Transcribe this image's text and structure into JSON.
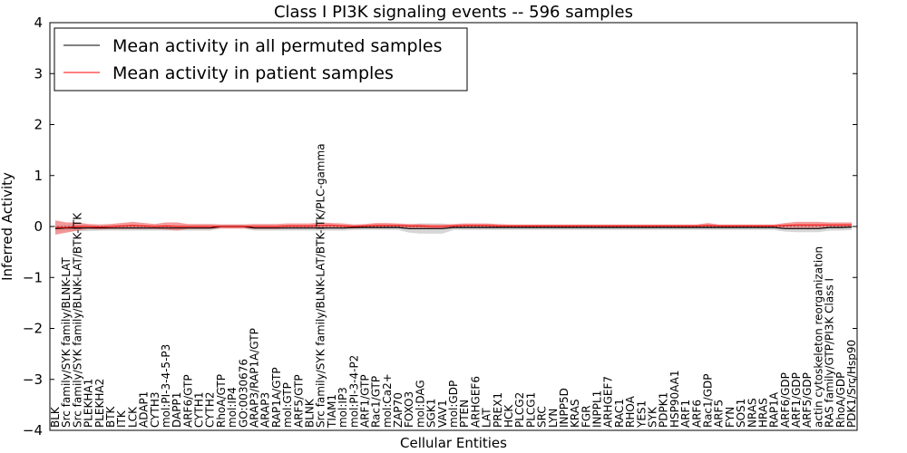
{
  "chart_data": {
    "type": "line",
    "title": "Class I PI3K signaling events -- 596 samples",
    "xlabel": "Cellular Entities",
    "ylabel": "Inferred Activity",
    "ylim": [
      -4,
      4
    ],
    "yticks": [
      "4",
      "3",
      "2",
      "1",
      "0",
      "−1",
      "−2",
      "−3",
      "−4"
    ],
    "yticks_values": [
      4,
      3,
      2,
      1,
      0,
      -1,
      -2,
      -3,
      -4
    ],
    "grid": false,
    "legend_position": "top-left",
    "categories": [
      "BLK",
      "Src family/SYK family/BLNK-LAT",
      "Src family/SYK family/BLNK-LAT/BTK-ITK",
      "PLEKHA1",
      "PLEKHA2",
      "BTK",
      "ITK",
      "LCK",
      "ADAP1",
      "CYTH3",
      "mol:PI-3-4-5-P3",
      "DAPP1",
      "ARF6/GTP",
      "CYTH1",
      "CYTH2",
      "RhoA/GTP",
      "mol:IP4",
      "GO:0030676",
      "ARAP3/RAP1A/GTP",
      "ARAP3",
      "RAP1A/GTP",
      "mol:GTP",
      "ARF5/GTP",
      "BLNK",
      "Src family/SYK family/BLNK-LAT/BTK-ITK/PLC-gamma",
      "TIAM1",
      "mol:IP3",
      "mol:PI-3-4-P2",
      "ARF1/GTP",
      "Rac1/GTP",
      "mol:Ca2+",
      "ZAP70",
      "FOXO3",
      "mol:DAG",
      "SGK1",
      "VAV1",
      "mol:GDP",
      "PTEN",
      "ARHGEF6",
      "LAT",
      "PREX1",
      "HCK",
      "PLCG2",
      "PLCG1",
      "SRC",
      "LYN",
      "INPP5D",
      "KRAS",
      "FGR",
      "INPPL1",
      "ARHGEF7",
      "RAC1",
      "RHOA",
      "YES1",
      "SYK",
      "PDPK1",
      "HSP90AA1",
      "ARF1",
      "ARF6",
      "Rac1/GDP",
      "ARF5",
      "FYN",
      "SOS1",
      "NRAS",
      "HRAS",
      "RAP1A",
      "ARF6/GDP",
      "ARF1/GDP",
      "ARF5/GDP",
      "actin cytoskeleton reorganization",
      "RAS family/GTP/PI3K Class I",
      "RhoA/GDP",
      "PDK1/Src/Hsp90"
    ],
    "series": [
      {
        "name": "Mean activity in all permuted samples",
        "color": "#000000",
        "band_color": "#c8c8c8",
        "values": [
          -0.04,
          -0.03,
          -0.03,
          -0.03,
          -0.03,
          -0.03,
          -0.03,
          -0.03,
          -0.03,
          -0.03,
          -0.03,
          -0.03,
          -0.03,
          -0.03,
          -0.03,
          0.0,
          0.0,
          0.0,
          -0.03,
          -0.03,
          -0.03,
          -0.03,
          -0.03,
          -0.03,
          -0.03,
          -0.03,
          -0.03,
          -0.02,
          -0.02,
          -0.02,
          -0.02,
          -0.02,
          -0.04,
          -0.04,
          -0.04,
          -0.04,
          -0.02,
          -0.02,
          -0.02,
          -0.02,
          -0.02,
          -0.02,
          -0.02,
          -0.02,
          -0.02,
          -0.02,
          -0.02,
          -0.02,
          -0.02,
          -0.02,
          -0.02,
          -0.02,
          -0.02,
          -0.02,
          -0.02,
          -0.02,
          -0.02,
          -0.02,
          -0.02,
          -0.02,
          -0.02,
          -0.02,
          -0.02,
          -0.02,
          -0.02,
          -0.02,
          -0.04,
          -0.04,
          -0.04,
          -0.04,
          -0.02,
          -0.02,
          -0.01
        ],
        "spread": [
          0.06,
          0.06,
          0.06,
          0.06,
          0.05,
          0.05,
          0.05,
          0.05,
          0.05,
          0.05,
          0.05,
          0.05,
          0.05,
          0.05,
          0.05,
          0.04,
          0.04,
          0.04,
          0.05,
          0.05,
          0.05,
          0.05,
          0.05,
          0.05,
          0.05,
          0.05,
          0.05,
          0.05,
          0.05,
          0.05,
          0.05,
          0.05,
          0.08,
          0.1,
          0.1,
          0.1,
          0.05,
          0.05,
          0.05,
          0.05,
          0.05,
          0.05,
          0.05,
          0.05,
          0.05,
          0.05,
          0.05,
          0.05,
          0.05,
          0.05,
          0.05,
          0.05,
          0.05,
          0.05,
          0.05,
          0.05,
          0.05,
          0.05,
          0.05,
          0.05,
          0.05,
          0.05,
          0.05,
          0.05,
          0.05,
          0.05,
          0.06,
          0.07,
          0.07,
          0.07,
          0.06,
          0.06,
          0.06
        ]
      },
      {
        "name": "Mean activity in patient samples",
        "color": "#ff0000",
        "band_color": "#f08080",
        "values": [
          -0.02,
          -0.02,
          0.0,
          0.0,
          -0.01,
          0.0,
          0.01,
          0.02,
          0.01,
          0.0,
          0.01,
          0.0,
          0.0,
          0.0,
          0.0,
          0.0,
          0.0,
          0.0,
          0.0,
          0.0,
          0.0,
          0.01,
          0.01,
          0.01,
          0.02,
          0.02,
          0.01,
          0.0,
          0.01,
          0.02,
          0.02,
          0.02,
          0.01,
          0.01,
          0.0,
          0.0,
          0.01,
          0.02,
          0.02,
          0.02,
          0.01,
          0.01,
          0.01,
          0.01,
          0.01,
          0.01,
          0.01,
          0.01,
          0.01,
          0.01,
          0.01,
          0.01,
          0.01,
          0.01,
          0.01,
          0.01,
          0.01,
          0.01,
          0.01,
          0.02,
          0.01,
          0.01,
          0.01,
          0.01,
          0.01,
          0.01,
          0.02,
          0.03,
          0.03,
          0.03,
          0.03,
          0.03,
          0.03
        ],
        "spread": [
          0.14,
          0.1,
          0.08,
          0.05,
          0.05,
          0.05,
          0.06,
          0.07,
          0.06,
          0.05,
          0.07,
          0.08,
          0.05,
          0.05,
          0.05,
          0.04,
          0.04,
          0.04,
          0.05,
          0.05,
          0.05,
          0.05,
          0.05,
          0.05,
          0.06,
          0.05,
          0.05,
          0.04,
          0.04,
          0.05,
          0.05,
          0.04,
          0.04,
          0.04,
          0.04,
          0.04,
          0.04,
          0.04,
          0.04,
          0.04,
          0.04,
          0.03,
          0.03,
          0.03,
          0.03,
          0.03,
          0.03,
          0.03,
          0.03,
          0.03,
          0.03,
          0.03,
          0.03,
          0.03,
          0.03,
          0.03,
          0.03,
          0.03,
          0.03,
          0.05,
          0.03,
          0.03,
          0.03,
          0.03,
          0.03,
          0.03,
          0.05,
          0.06,
          0.06,
          0.06,
          0.05,
          0.05,
          0.05
        ]
      }
    ],
    "annotations": [
      {
        "category_index": 2,
        "text": "BTK-ITK"
      },
      {
        "category_index": 24,
        "text": "BTK-ITK/PLC-gamma"
      }
    ]
  }
}
